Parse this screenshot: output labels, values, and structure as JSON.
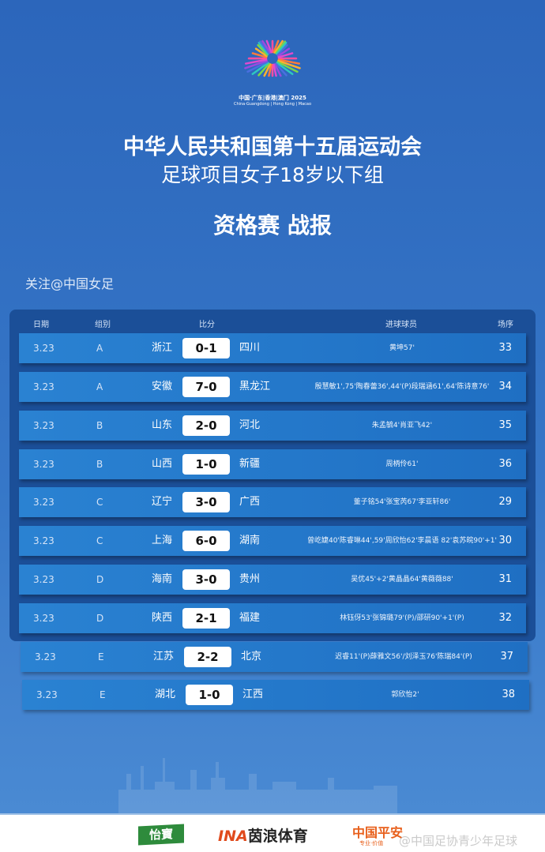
{
  "logo": {
    "line1": "中国·广东|香港|澳门 2025",
    "line2": "China·Guangdong | Hong Kong | Macao"
  },
  "title": {
    "line1": "中华人民共和国第十五届运动会",
    "line2": "足球项目女子18岁以下组",
    "line3": "资格赛 战报"
  },
  "follow": "关注@中国女足",
  "headers": {
    "date": "日期",
    "group": "组别",
    "score": "比分",
    "scorers": "进球球员",
    "match_no": "场序"
  },
  "matches": [
    {
      "date": "3.23",
      "group": "A",
      "home": "浙江",
      "score": "0-1",
      "away": "四川",
      "scorers": "黄坤57'",
      "no": "33"
    },
    {
      "date": "3.23",
      "group": "A",
      "home": "安徽",
      "score": "7-0",
      "away": "黑龙江",
      "scorers": "殷慧敏1',75'陶春蕾36',44'(P)段瑞涵61',64'陈诗意76'",
      "no": "34"
    },
    {
      "date": "3.23",
      "group": "B",
      "home": "山东",
      "score": "2-0",
      "away": "河北",
      "scorers": "朱孟毓4'肖亚飞42'",
      "no": "35"
    },
    {
      "date": "3.23",
      "group": "B",
      "home": "山西",
      "score": "1-0",
      "away": "新疆",
      "scorers": "周柄伶61'",
      "no": "36"
    },
    {
      "date": "3.23",
      "group": "C",
      "home": "辽宁",
      "score": "3-0",
      "away": "广西",
      "scorers": "董子铭54'张宝芮67'李亚轩86'",
      "no": "29"
    },
    {
      "date": "3.23",
      "group": "C",
      "home": "上海",
      "score": "6-0",
      "away": "湖南",
      "scorers": "曾屹婕40'陈睿琳44',59'周欣怡62'李晨语 82'袁苏皖90'+1'",
      "no": "30"
    },
    {
      "date": "3.23",
      "group": "D",
      "home": "海南",
      "score": "3-0",
      "away": "贵州",
      "scorers": "吴优45'+2'黄晶晶64'黄薇薇88'",
      "no": "31"
    },
    {
      "date": "3.23",
      "group": "D",
      "home": "陕西",
      "score": "2-1",
      "away": "福建",
      "scorers": "林钰伢53'张锦璐79'(P)/邵研90'+1'(P)",
      "no": "32"
    },
    {
      "date": "3.23",
      "group": "E",
      "home": "江苏",
      "score": "2-2",
      "away": "北京",
      "scorers": "迟睿11'(P)薛雅文56'/刘泽玉76'陈瑞84'(P)",
      "no": "37"
    },
    {
      "date": "3.23",
      "group": "E",
      "home": "湖北",
      "score": "1-0",
      "away": "江西",
      "scorers": "郭欣怡2'",
      "no": "38"
    }
  ],
  "sponsors": {
    "s1": "怡寶",
    "s2_mark": "INA",
    "s2": "茵浪体育",
    "s3": "中国平安",
    "s3_sub": "专业·价值"
  },
  "watermark": "@中国足协青少年足球"
}
